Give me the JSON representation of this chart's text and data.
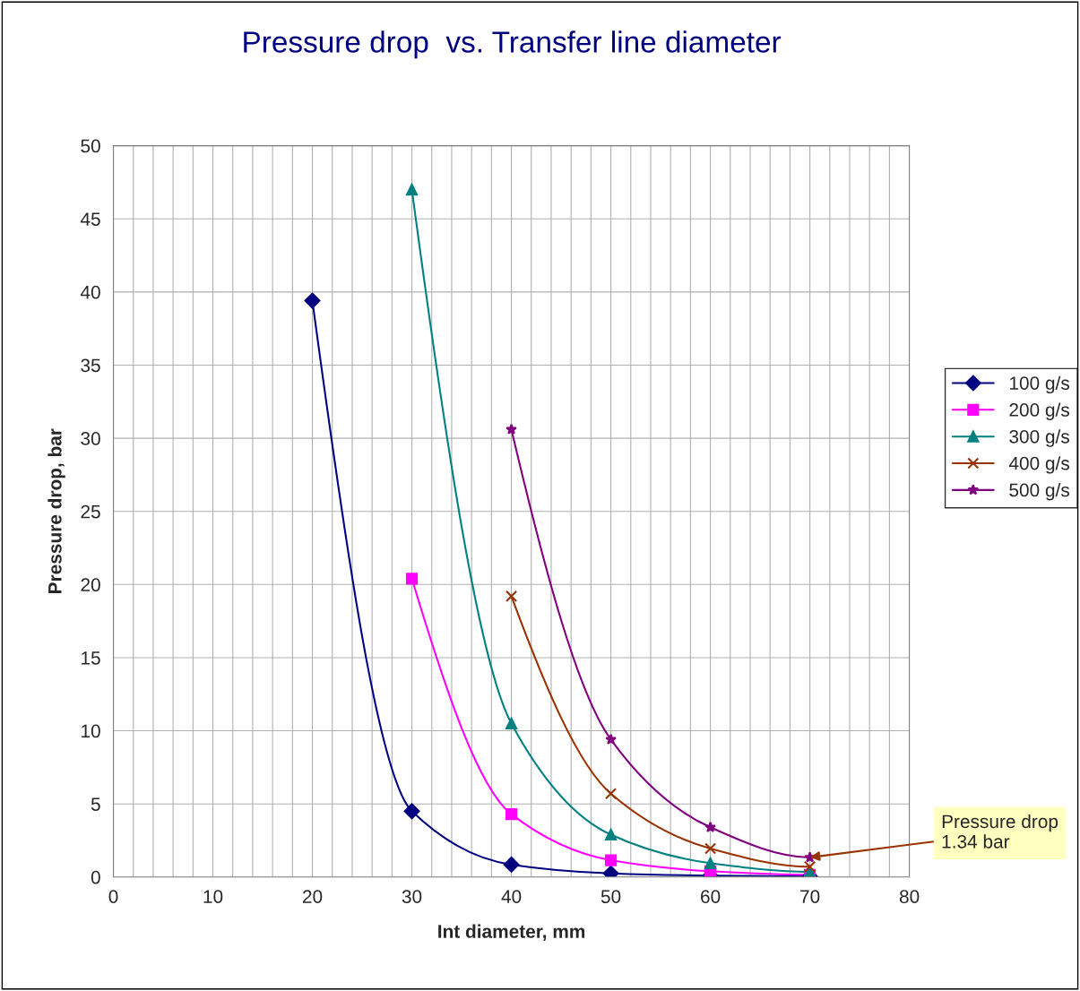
{
  "chart_data": {
    "type": "line",
    "title": "Pressure drop  vs. Transfer line diameter",
    "xlabel": "Int diameter, mm",
    "ylabel": "Pressure drop, bar",
    "xlim": [
      0,
      80
    ],
    "xticks": [
      0,
      {
        "value": 2,
        "label": null
      },
      {
        "value": 4,
        "label": null
      },
      {
        "value": 6,
        "label": null
      },
      {
        "value": 8,
        "label": null
      },
      10,
      {
        "value": 12,
        "label": null
      },
      {
        "value": 14,
        "label": null
      },
      {
        "value": 16,
        "label": null
      },
      {
        "value": 18,
        "label": null
      },
      20,
      {
        "value": 22,
        "label": null
      },
      {
        "value": 24,
        "label": null
      },
      {
        "value": 26,
        "label": null
      },
      {
        "value": 28,
        "label": null
      },
      30,
      {
        "value": 32,
        "label": null
      },
      {
        "value": 34,
        "label": null
      },
      {
        "value": 36,
        "label": null
      },
      {
        "value": 38,
        "label": null
      },
      40,
      {
        "value": 42,
        "label": null
      },
      {
        "value": 44,
        "label": null
      },
      {
        "value": 46,
        "label": null
      },
      {
        "value": 48,
        "label": null
      },
      50,
      {
        "value": 52,
        "label": null
      },
      {
        "value": 54,
        "label": null
      },
      {
        "value": 56,
        "label": null
      },
      {
        "value": 58,
        "label": null
      },
      60,
      {
        "value": 62,
        "label": null
      },
      {
        "value": 64,
        "label": null
      },
      {
        "value": 66,
        "label": null
      },
      {
        "value": 68,
        "label": null
      },
      70,
      {
        "value": 72,
        "label": null
      },
      {
        "value": 74,
        "label": null
      },
      {
        "value": 76,
        "label": null
      },
      {
        "value": 78,
        "label": null
      },
      80
    ],
    "ylim": [
      0,
      50
    ],
    "yticks": [
      0,
      5,
      10,
      15,
      20,
      25,
      30,
      35,
      40,
      45,
      50
    ],
    "grid": true,
    "legend": "right",
    "series": [
      {
        "name": "100 g/s",
        "color": "#000080",
        "marker": "diamond",
        "x": [
          20,
          30,
          40,
          50,
          60,
          70
        ],
        "values": [
          39.4,
          4.5,
          0.85,
          0.25,
          0.1,
          0.05
        ]
      },
      {
        "name": "200 g/s",
        "color": "#ff00ff",
        "marker": "square",
        "x": [
          30,
          40,
          50,
          60,
          70
        ],
        "values": [
          20.4,
          4.3,
          1.15,
          0.4,
          0.15
        ]
      },
      {
        "name": "300 g/s",
        "color": "#008080",
        "marker": "triangle",
        "x": [
          30,
          40,
          50,
          60,
          70
        ],
        "values": [
          47,
          10.5,
          2.9,
          0.95,
          0.35
        ]
      },
      {
        "name": "400 g/s",
        "color": "#993300",
        "marker": "cross",
        "x": [
          40,
          50,
          60,
          70
        ],
        "values": [
          19.2,
          5.7,
          1.95,
          0.7
        ]
      },
      {
        "name": "500 g/s",
        "color": "#800080",
        "marker": "star",
        "x": [
          40,
          50,
          60,
          70
        ],
        "values": [
          30.6,
          9.4,
          3.4,
          1.34
        ]
      }
    ],
    "annotations": [
      {
        "text": "Pressure drop\n1.34 bar",
        "x": 70,
        "y": 1.34
      }
    ]
  }
}
